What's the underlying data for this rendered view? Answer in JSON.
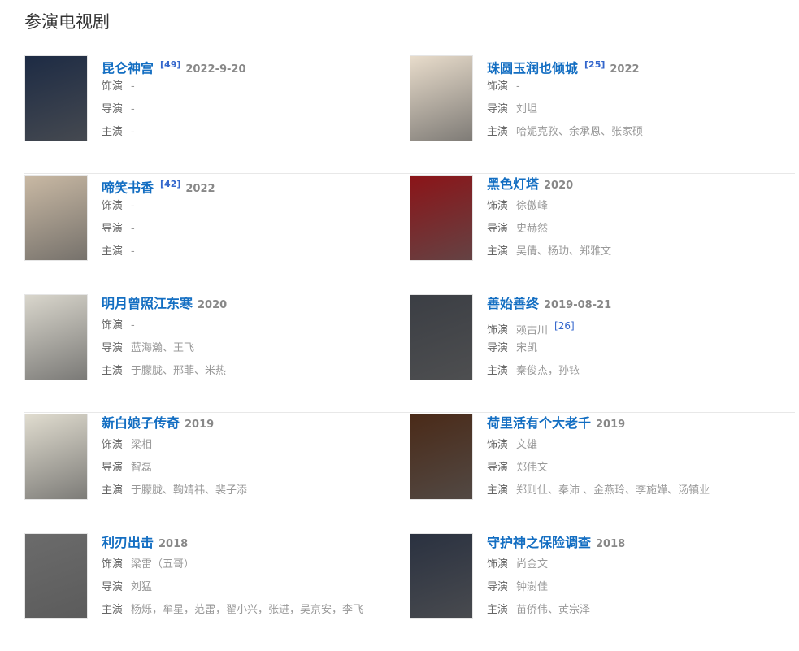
{
  "section_title": "参演电视剧",
  "labels": {
    "role": "饰演",
    "director": "导演",
    "cast": "主演"
  },
  "items": [
    {
      "title": "昆仑神宫",
      "ref": "[49]",
      "year": "2022-9-20",
      "role": "-",
      "director": "-",
      "cast": "-",
      "poster_color": "#1d2b44"
    },
    {
      "title": "珠圆玉润也倾城",
      "ref": "[25]",
      "year": "2022",
      "role": "-",
      "director": "刘坦",
      "cast": "哈妮克孜、余承恩、张家硕",
      "poster_color": "#e8dccb"
    },
    {
      "title": "啼笑书香",
      "ref": "[42]",
      "year": "2022",
      "role": "-",
      "director": "-",
      "cast": "-",
      "poster_color": "#c9b9a4"
    },
    {
      "title": "黑色灯塔",
      "year": "2020",
      "role": "徐傲峰",
      "director": "史赫然",
      "cast": "吴倩、杨玏、郑雅文",
      "poster_color": "#8b1418"
    },
    {
      "title": "明月曾照江东寒",
      "year": "2020",
      "role": "-",
      "director": "蓝海瀚、王飞",
      "cast": "于朦胧、邢菲、米热",
      "poster_color": "#d9d6cc"
    },
    {
      "title": "善始善终",
      "year": "2019-08-21",
      "role": "赖古川",
      "role_ref": "[26]",
      "director": "宋凯",
      "cast": "秦俊杰，孙铱",
      "poster_color": "#3b3e44"
    },
    {
      "title": "新白娘子传奇",
      "year": "2019",
      "role": "梁相",
      "director": "智磊",
      "cast": "于朦胧、鞠婧祎、裴子添",
      "poster_color": "#e0dccf"
    },
    {
      "title": "荷里活有个大老千",
      "year": "2019",
      "role": "文雄",
      "director": "郑伟文",
      "cast": "郑则仕、秦沛 、金燕玲、李施嬅、汤镇业",
      "poster_color": "#4a2a18"
    },
    {
      "title": "利刃出击",
      "year": "2018",
      "role": "梁雷（五哥）",
      "director": "刘猛",
      "cast": "杨烁，牟星，范雷，翟小兴，张进，吴京安，李飞",
      "poster_color": "#6b6b6b"
    },
    {
      "title": "守护神之保险调查",
      "year": "2018",
      "role": "尚金文",
      "director": "钟澍佳",
      "cast": "苗侨伟、黄宗泽",
      "poster_color": "#2a3140"
    }
  ]
}
